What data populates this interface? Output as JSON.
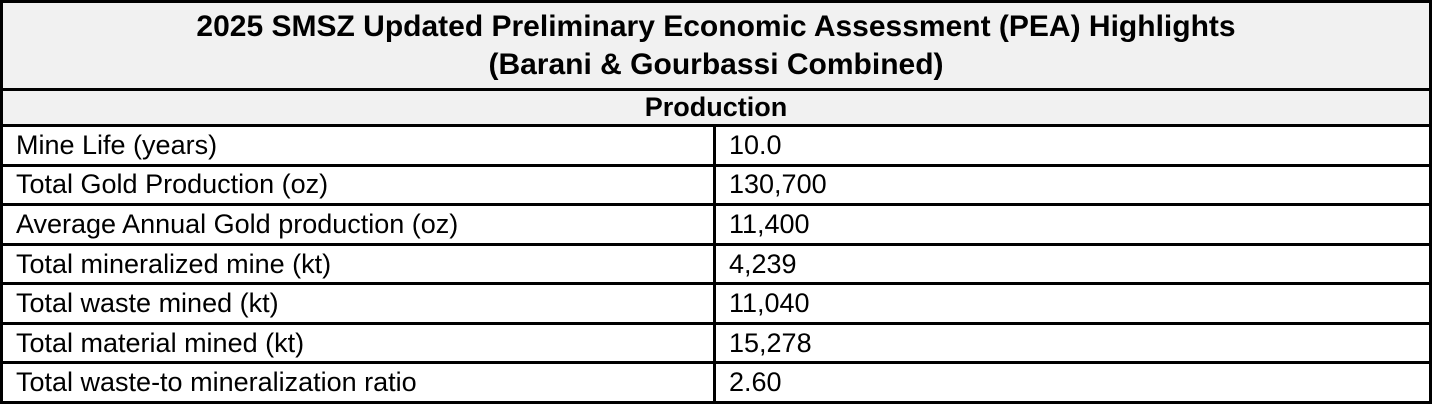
{
  "title": {
    "line1": "2025 SMSZ Updated Preliminary Economic Assessment (PEA) Highlights",
    "line2": "(Barani & Gourbassi Combined)"
  },
  "section_header": "Production",
  "table": {
    "rows": [
      {
        "label": "Mine Life (years)",
        "value": "10.0"
      },
      {
        "label": "Total Gold Production (oz)",
        "value": "130,700"
      },
      {
        "label": "Average Annual Gold production (oz)",
        "value": "11,400"
      },
      {
        "label": "Total mineralized mine (kt)",
        "value": "4,239"
      },
      {
        "label": "Total waste mined (kt)",
        "value": "11,040"
      },
      {
        "label": "Total material mined (kt)",
        "value": "15,278"
      },
      {
        "label": "Total waste-to mineralization ratio",
        "value": "2.60"
      }
    ]
  },
  "colors": {
    "border": "#000000",
    "header_background": "#f1f1f1",
    "row_background": "#ffffff",
    "text": "#000000"
  }
}
